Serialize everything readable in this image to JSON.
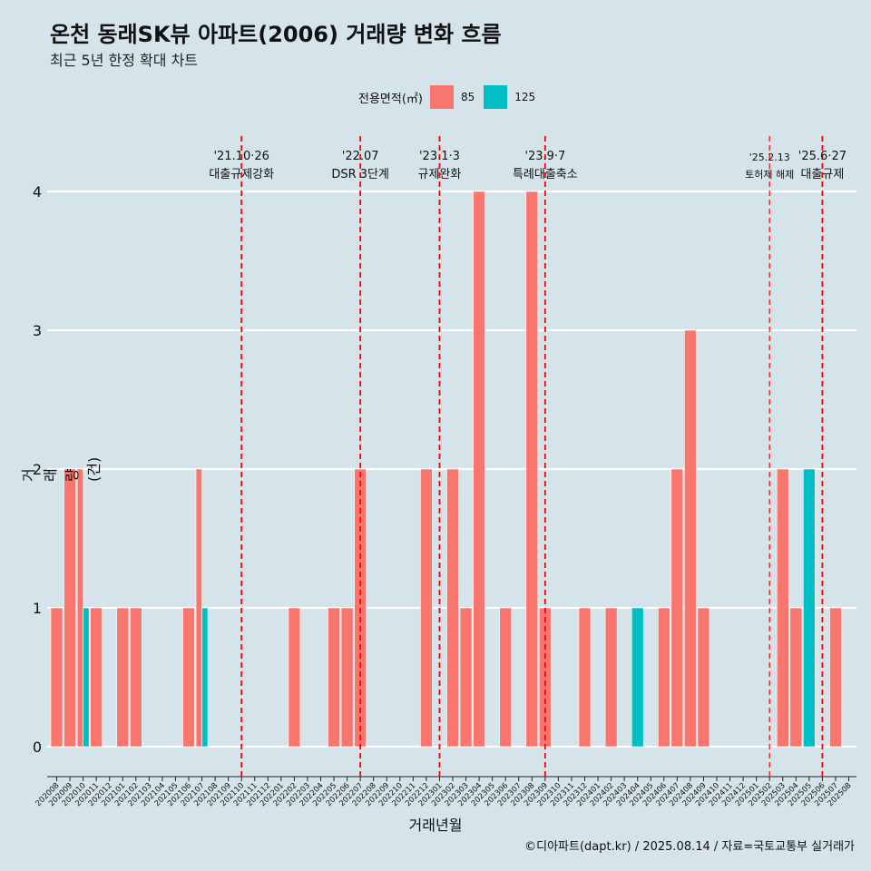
{
  "title": "온천 동래SK뷰 아파트(2006) 거래량 변화 흐름",
  "subtitle": "최근 5년 한정 확대 차트",
  "legend": {
    "title": "전용면적(㎡)",
    "items": [
      {
        "label": "85",
        "color": "#f8766d"
      },
      {
        "label": "125",
        "color": "#00bfc4"
      }
    ]
  },
  "caption": "©디아파트(dapt.kr) / 2025.08.14 / 자료=국토교통부 실거래가",
  "chart_data": {
    "type": "bar",
    "title": "온천 동래SK뷰 아파트(2006) 거래량 변화 흐름",
    "subtitle": "최근 5년 한정 확대 차트",
    "xlabel": "거래년월",
    "ylabel": "거래량(건)",
    "ylim": [
      -0.2,
      4.35
    ],
    "yticks": [
      0,
      1,
      2,
      3,
      4
    ],
    "grid": true,
    "legend_position": "top",
    "categories": [
      "202008",
      "202009",
      "202010",
      "202011",
      "202012",
      "202101",
      "202102",
      "202103",
      "202104",
      "202105",
      "202106",
      "202107",
      "202108",
      "202109",
      "202110",
      "202111",
      "202112",
      "202201",
      "202202",
      "202203",
      "202204",
      "202205",
      "202206",
      "202207",
      "202208",
      "202209",
      "202210",
      "202211",
      "202212",
      "202301",
      "202302",
      "202303",
      "202304",
      "202305",
      "202306",
      "202307",
      "202308",
      "202309",
      "202310",
      "202311",
      "202312",
      "202401",
      "202402",
      "202403",
      "202404",
      "202405",
      "202406",
      "202407",
      "202408",
      "202409",
      "202410",
      "202411",
      "202412",
      "202501",
      "202502",
      "202503",
      "202504",
      "202505",
      "202506",
      "202507",
      "202508"
    ],
    "series": [
      {
        "name": "85",
        "color": "#f8766d",
        "values": [
          1,
          2,
          2,
          1,
          0,
          1,
          1,
          0,
          0,
          0,
          1,
          2,
          0,
          0,
          0,
          0,
          0,
          0,
          1,
          0,
          0,
          1,
          1,
          2,
          0,
          0,
          0,
          0,
          2,
          0,
          2,
          1,
          4,
          0,
          1,
          0,
          4,
          1,
          0,
          0,
          1,
          0,
          1,
          0,
          0,
          0,
          1,
          2,
          3,
          1,
          0,
          0,
          0,
          0,
          0,
          2,
          1,
          0,
          0,
          1,
          0
        ]
      },
      {
        "name": "125",
        "color": "#00bfc4",
        "values": [
          0,
          0,
          1,
          0,
          0,
          0,
          0,
          0,
          0,
          0,
          0,
          1,
          0,
          0,
          0,
          0,
          0,
          0,
          0,
          0,
          0,
          0,
          0,
          0,
          0,
          0,
          0,
          0,
          0,
          0,
          0,
          0,
          0,
          0,
          0,
          0,
          0,
          0,
          0,
          0,
          0,
          0,
          0,
          0,
          1,
          0,
          0,
          0,
          0,
          0,
          0,
          0,
          0,
          0,
          0,
          0,
          0,
          2,
          0,
          0,
          0
        ]
      }
    ],
    "annotations": [
      {
        "x": "202110",
        "date": "'21.10·26",
        "text": "대출규제강화",
        "small": false
      },
      {
        "x": "202207",
        "date": "'22.07",
        "text": "DSR 3단계",
        "small": false
      },
      {
        "x": "202301",
        "date": "'23.1·3",
        "text": "규제완화",
        "small": false
      },
      {
        "x": "202309",
        "date": "'23.9·7",
        "text": "특례대출축소",
        "small": false
      },
      {
        "x": "202502",
        "date": "'25.2.13",
        "text": "토허제 해제",
        "small": true
      },
      {
        "x": "202506",
        "date": "'25.6·27",
        "text": "대출규제",
        "small": false
      }
    ],
    "vline_color": "#ff0000"
  }
}
